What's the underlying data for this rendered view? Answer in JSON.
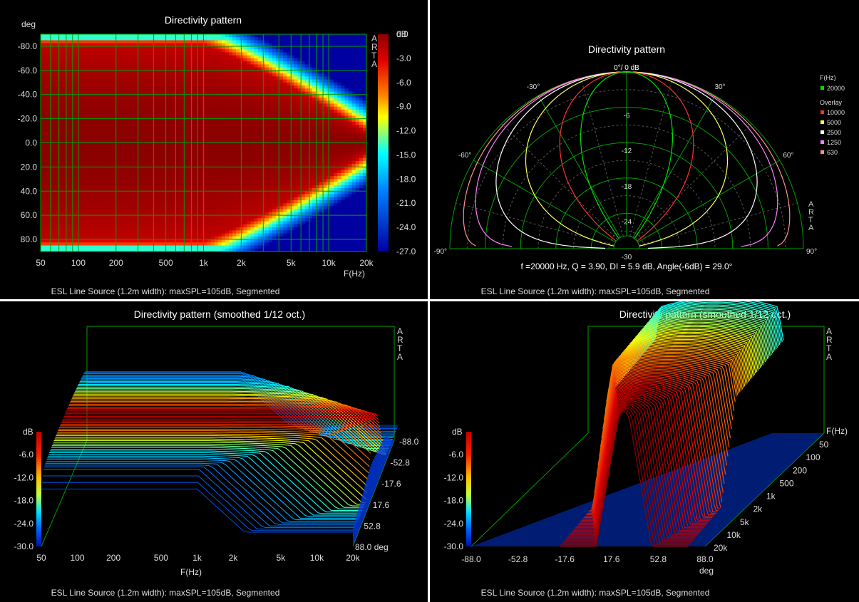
{
  "colors": {
    "background": "#000000",
    "grid": "#00a000",
    "text": "#e0e0e0",
    "title": "#ffffff"
  },
  "heatmap": {
    "title": "Directivity pattern",
    "ylabel": "deg",
    "xlabel": "F(Hz)",
    "x_ticks": [
      "50",
      "100",
      "200",
      "500",
      "1k",
      "2k",
      "5k",
      "10k",
      "20k"
    ],
    "y_ticks": [
      "-80.0",
      "-60.0",
      "-40.0",
      "-20.0",
      "0.0",
      "20.0",
      "40.0",
      "60.0",
      "80.0"
    ],
    "colorbar_unit": "dB",
    "colorbar_ticks": [
      "0.0",
      "-3.0",
      "-6.0",
      "-9.0",
      "-12.0",
      "-15.0",
      "-18.0",
      "-21.0",
      "-24.0",
      "-27.0"
    ],
    "brand": "ARTA",
    "caption": "ESL Line Source (1.2m width): maxSPL=105dB, Segmented"
  },
  "polar": {
    "title": "Directivity pattern",
    "top_label": "0°/ 0 dB",
    "angle_labels": [
      "-30°",
      "30°",
      "-60°",
      "60°",
      "-90°",
      "90°"
    ],
    "radial_labels": [
      "-6",
      "-12",
      "-18",
      "-24",
      "-30"
    ],
    "legend_header": "F(Hz)",
    "legend_main": {
      "label": "20000",
      "color": "#00e000"
    },
    "overlay_header": "Overlay",
    "overlay": [
      {
        "label": "10000",
        "color": "#ff3030"
      },
      {
        "label": "5000",
        "color": "#ffff60"
      },
      {
        "label": "2500",
        "color": "#ffffff"
      },
      {
        "label": "1250",
        "color": "#ff80ff"
      },
      {
        "label": "630",
        "color": "#ff9090"
      }
    ],
    "stats": "f =20000 Hz,  Q =  3.90,  DI =   5.9 dB,  Angle(-6dB) =  29.0°",
    "brand": "ARTA",
    "caption": "ESL Line Source (1.2m width): maxSPL=105dB, Segmented"
  },
  "waterfall_freq": {
    "title": "Directivity pattern (smoothed 1/12 oct.)",
    "z_unit": "dB",
    "z_ticks": [
      "-6.0",
      "-12.0",
      "-18.0",
      "-24.0",
      "-30.0"
    ],
    "x_ticks": [
      "50",
      "100",
      "200",
      "500",
      "1k",
      "2k",
      "5k",
      "10k",
      "20k"
    ],
    "xlabel": "F(Hz)",
    "depth_ticks": [
      "-88.0",
      "-52.8",
      "-17.6",
      "17.6",
      "52.8",
      "88.0 deg"
    ],
    "brand": "ARTA",
    "caption": "ESL Line Source (1.2m width): maxSPL=105dB, Segmented"
  },
  "waterfall_angle": {
    "title": "Directivity pattern (smoothed 1/12 oct.)",
    "z_unit": "dB",
    "z_ticks": [
      "-6.0",
      "-12.0",
      "-18.0",
      "-24.0",
      "-30.0"
    ],
    "x_ticks": [
      "-88.0",
      "-52.8",
      "-17.6",
      "17.6",
      "52.8",
      "88.0"
    ],
    "xlabel": "deg",
    "depth_label": "F(Hz)",
    "depth_ticks": [
      "50",
      "100",
      "200",
      "500",
      "1k",
      "2k",
      "5k",
      "10k",
      "20k"
    ],
    "brand": "ARTA",
    "caption": "ESL Line Source (1.2m width): maxSPL=105dB, Segmented"
  },
  "chart_data": [
    {
      "type": "heatmap",
      "title": "Directivity pattern",
      "xlabel": "F(Hz)",
      "ylabel": "deg",
      "x_scale": "log",
      "xlim": [
        50,
        20000
      ],
      "ylim": [
        -90,
        90
      ],
      "z_range_db": [
        -27,
        0
      ],
      "x_tick_labels": [
        "50",
        "100",
        "200",
        "500",
        "1k",
        "2k",
        "5k",
        "10k",
        "20k"
      ],
      "y_tick_labels": [
        "-80.0",
        "-60.0",
        "-40.0",
        "-20.0",
        "0.0",
        "20.0",
        "40.0",
        "60.0",
        "80.0"
      ]
    },
    {
      "type": "polar",
      "title": "Directivity pattern",
      "theta_range_deg": [
        -90,
        90
      ],
      "r_range_db": [
        -30,
        0
      ],
      "series": [
        {
          "name": "20000",
          "beamwidth_minus6db_deg": 29.0
        },
        {
          "name": "10000"
        },
        {
          "name": "5000"
        },
        {
          "name": "2500"
        },
        {
          "name": "1250"
        },
        {
          "name": "630"
        }
      ],
      "Q": 3.9,
      "DI_db": 5.9,
      "f_hz": 20000
    },
    {
      "type": "area",
      "title": "Directivity pattern (smoothed 1/12 oct.)",
      "xlabel": "F(Hz)",
      "x_scale": "log",
      "xlim": [
        50,
        20000
      ],
      "zlim": [
        -30,
        0
      ],
      "depth_range_deg": [
        -88,
        88
      ]
    },
    {
      "type": "area",
      "title": "Directivity pattern (smoothed 1/12 oct.)",
      "xlabel": "deg",
      "xlim": [
        -88,
        88
      ],
      "zlim": [
        -30,
        0
      ],
      "depth_range_hz": [
        50,
        20000
      ]
    }
  ]
}
